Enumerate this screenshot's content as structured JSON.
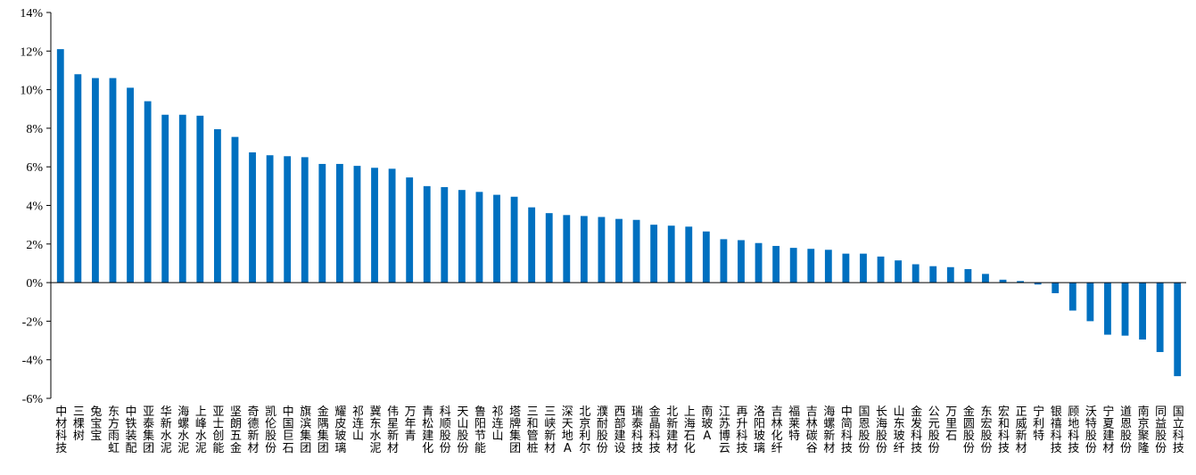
{
  "chart_data": {
    "type": "bar",
    "title": "",
    "xlabel": "",
    "ylabel": "",
    "ylim": [
      -6,
      14
    ],
    "yticks": [
      -6,
      -4,
      -2,
      0,
      2,
      4,
      6,
      8,
      10,
      12,
      14
    ],
    "ytick_labels": [
      "-6%",
      "-4%",
      "-2%",
      "0%",
      "2%",
      "4%",
      "6%",
      "8%",
      "10%",
      "12%",
      "14%"
    ],
    "grid": false,
    "legend": "none",
    "bar_color": "#0070C0",
    "categories": [
      "中材科技",
      "三棵树",
      "兔宝宝",
      "东方雨虹",
      "中铁装配",
      "亚泰集团",
      "华新水泥",
      "海螺水泥",
      "上峰水泥",
      "亚士创能",
      "坚朗五金",
      "奇德新材",
      "凯伦股份",
      "中国巨石",
      "旗滨集团",
      "金隅集团",
      "耀皮玻璃",
      "祁连山",
      "冀东水泥",
      "伟星新材",
      "万年青",
      "青松建化",
      "科顺股份",
      "天山股份",
      "鲁阳节能",
      "祁连山",
      "塔牌集团",
      "三和管桩",
      "三峡新材",
      "深天地A",
      "北京利尔",
      "濮耐股份",
      "西部建设",
      "瑞泰科技",
      "金晶科技",
      "北新建材",
      "上海石化",
      "南玻A",
      "江苏博云",
      "再升科技",
      "洛阳玻璃",
      "吉林化纤",
      "福莱特",
      "吉林碳谷",
      "海螺新材",
      "中简科技",
      "国恩股份",
      "长海股份",
      "山东玻纤",
      "金发科技",
      "公元股份",
      "万里石",
      "金圆股份",
      "东宏股份",
      "宏和科技",
      "正威新材",
      "宁利特",
      "银禧科技",
      "顾地科技",
      "沃特股份",
      "宁夏建材",
      "道恩股份",
      "南京聚隆",
      "同益股份",
      "国立科技"
    ],
    "series": [
      {
        "values": [
          12.1,
          10.8,
          10.6,
          10.6,
          10.1,
          9.4,
          8.7,
          8.7,
          8.65,
          7.95,
          7.55,
          6.75,
          6.6,
          6.55,
          6.5,
          6.15,
          6.15,
          6.05,
          5.95,
          5.9,
          5.45,
          5.0,
          4.95,
          4.8,
          4.7,
          4.55,
          4.45,
          3.9,
          3.6,
          3.5,
          3.45,
          3.4,
          3.3,
          3.25,
          3.0,
          2.95,
          2.9,
          2.65,
          2.25,
          2.2,
          2.05,
          1.9,
          1.8,
          1.75,
          1.7,
          1.5,
          1.5,
          1.35,
          1.15,
          0.95,
          0.85,
          0.8,
          0.7,
          0.45,
          0.15,
          0.08,
          -0.1,
          -0.55,
          -1.45,
          -2.0,
          -2.7,
          -2.75,
          -2.95,
          -3.6,
          -4.85
        ]
      }
    ]
  }
}
